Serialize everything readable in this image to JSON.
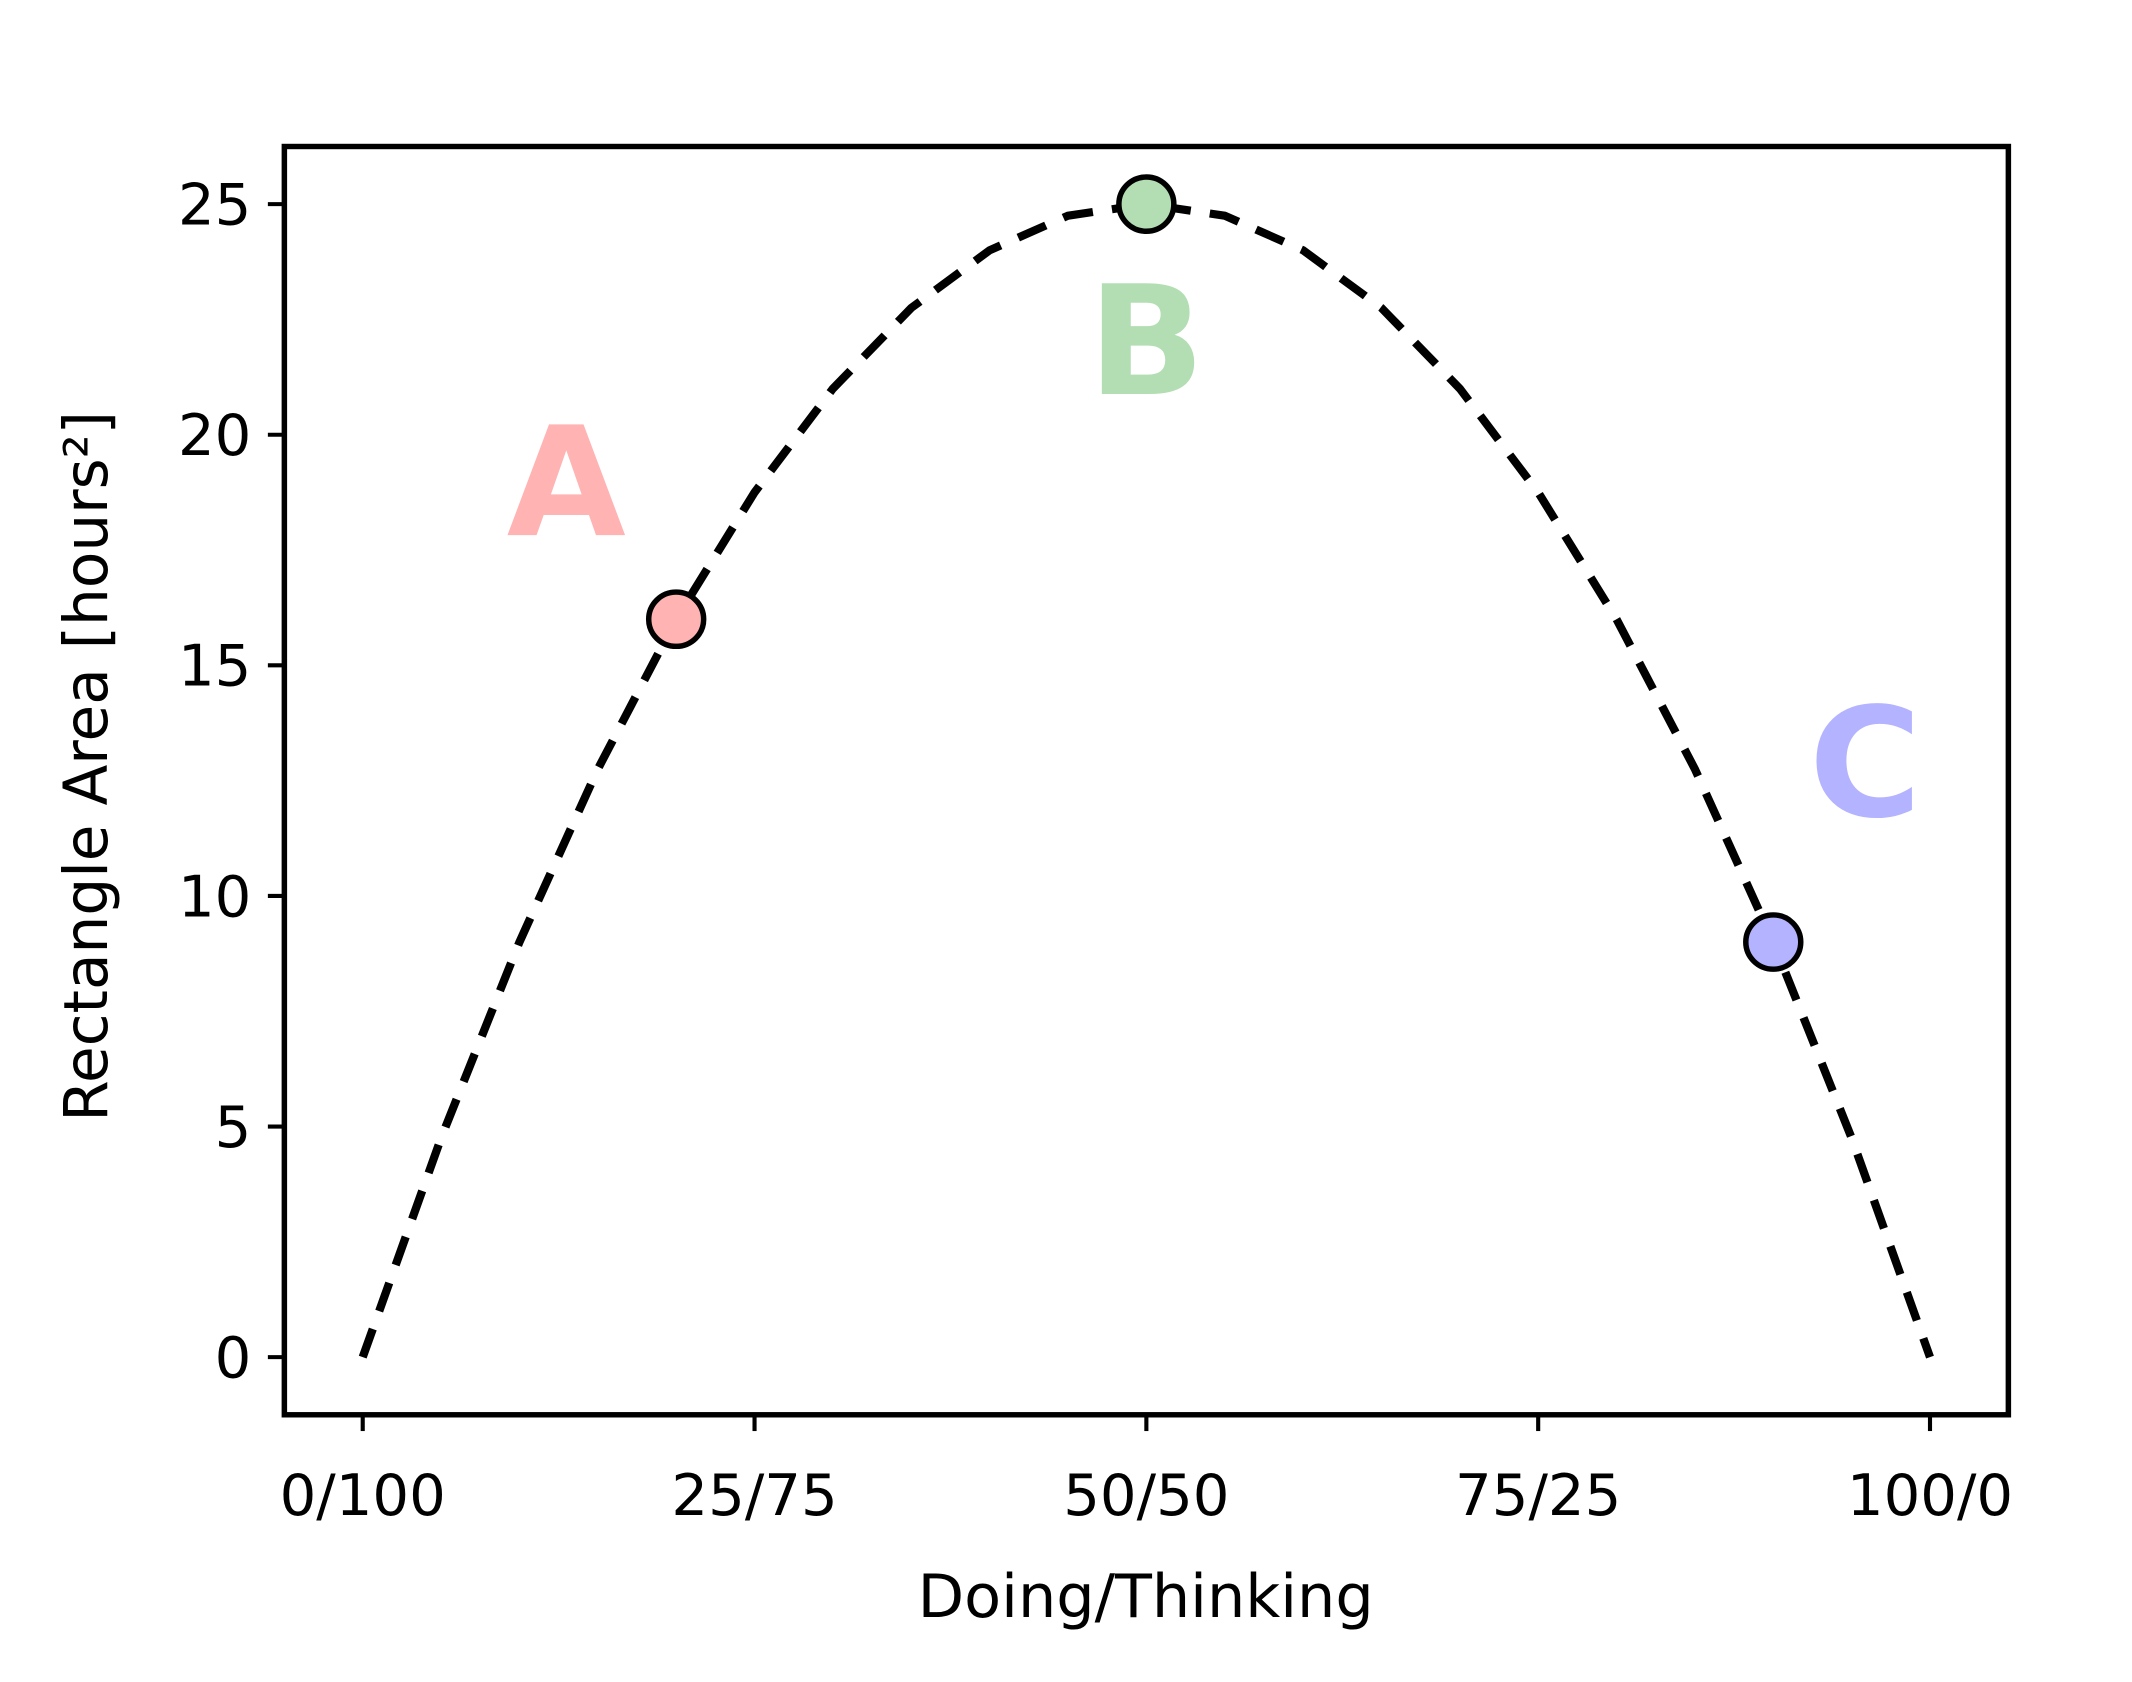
{
  "chart_data": {
    "type": "line",
    "xlabel": "Doing/Thinking",
    "ylabel": "Rectangle Area [hours²]",
    "x": [
      0,
      5,
      10,
      15,
      20,
      25,
      30,
      35,
      40,
      45,
      50,
      55,
      60,
      65,
      70,
      75,
      80,
      85,
      90,
      95,
      100
    ],
    "series": [
      {
        "color": "#000000",
        "dashed": true,
        "values": [
          0,
          4.75,
          9,
          12.75,
          16,
          18.75,
          21,
          22.75,
          24,
          24.75,
          25,
          24.75,
          24,
          22.75,
          21,
          18.75,
          16,
          12.75,
          9,
          4.75,
          0
        ]
      }
    ],
    "points": [
      {
        "label": "A",
        "x": 20,
        "y": 16,
        "color": "#ffb3b3"
      },
      {
        "label": "B",
        "x": 50,
        "y": 25,
        "color": "#b3deb3"
      },
      {
        "label": "C",
        "x": 90,
        "y": 9,
        "color": "#b3b3ff"
      }
    ],
    "xlim": [
      -5,
      105
    ],
    "ylim": [
      -1.25,
      26.25
    ],
    "xticks": [
      {
        "value": 0,
        "label": "0/100"
      },
      {
        "value": 25,
        "label": "25/75"
      },
      {
        "value": 50,
        "label": "50/50"
      },
      {
        "value": 75,
        "label": "75/25"
      },
      {
        "value": 100,
        "label": "100/0"
      }
    ],
    "yticks": [
      0,
      5,
      10,
      15,
      20,
      25
    ]
  }
}
